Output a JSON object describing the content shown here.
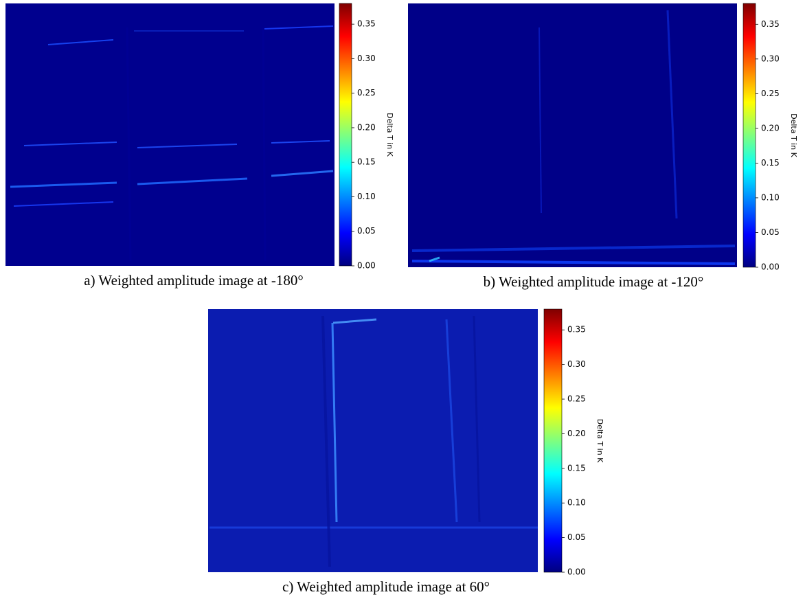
{
  "chart_data": [
    {
      "type": "heatmap",
      "title": "a) Weighted amplitude image at -180°",
      "colormap": "jet",
      "colorbar_label": "Delta T in K",
      "clim": [
        0,
        0.38
      ],
      "cticks": [
        {
          "value": 0,
          "label": "0.00"
        },
        {
          "value": 0.05,
          "label": "0.05"
        },
        {
          "value": 0.1,
          "label": "0.10"
        },
        {
          "value": 0.15,
          "label": "0.15"
        },
        {
          "value": 0.2,
          "label": "0.20"
        },
        {
          "value": 0.25,
          "label": "0.25"
        },
        {
          "value": 0.3,
          "label": "0.30"
        },
        {
          "value": 0.35,
          "label": "0.35"
        }
      ]
    },
    {
      "type": "heatmap",
      "title": "b) Weighted amplitude image at -120°",
      "colormap": "jet",
      "colorbar_label": "Delta T in K",
      "clim": [
        0,
        0.38
      ],
      "cticks": [
        {
          "value": 0,
          "label": "0.00"
        },
        {
          "value": 0.05,
          "label": "0.05"
        },
        {
          "value": 0.1,
          "label": "0.10"
        },
        {
          "value": 0.15,
          "label": "0.15"
        },
        {
          "value": 0.2,
          "label": "0.20"
        },
        {
          "value": 0.25,
          "label": "0.25"
        },
        {
          "value": 0.3,
          "label": "0.30"
        },
        {
          "value": 0.35,
          "label": "0.35"
        }
      ]
    },
    {
      "type": "heatmap",
      "title": "c) Weighted amplitude image at 60°",
      "colormap": "jet",
      "colorbar_label": "Delta T in K",
      "clim": [
        0,
        0.38
      ],
      "cticks": [
        {
          "value": 0,
          "label": "0.00"
        },
        {
          "value": 0.05,
          "label": "0.05"
        },
        {
          "value": 0.1,
          "label": "0.10"
        },
        {
          "value": 0.15,
          "label": "0.15"
        },
        {
          "value": 0.2,
          "label": "0.20"
        },
        {
          "value": 0.25,
          "label": "0.25"
        },
        {
          "value": 0.3,
          "label": "0.30"
        },
        {
          "value": 0.35,
          "label": "0.35"
        }
      ]
    }
  ]
}
